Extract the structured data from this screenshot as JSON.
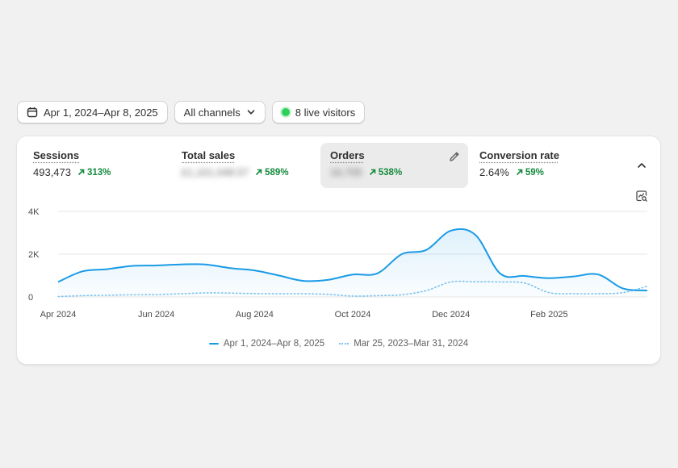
{
  "toolbar": {
    "date_range": "Apr 1, 2024–Apr 8, 2025",
    "channel": "All channels",
    "live_visitors": "8 live visitors"
  },
  "metrics": [
    {
      "label": "Sessions",
      "value": "493,473",
      "change": "313%",
      "blurred": false
    },
    {
      "label": "Total sales",
      "value": "£1,101,048.57",
      "change": "589%",
      "blurred": true
    },
    {
      "label": "Orders",
      "value": "16,705",
      "change": "538%",
      "blurred": true
    },
    {
      "label": "Conversion rate",
      "value": "2.64%",
      "change": "59%",
      "blurred": false
    }
  ],
  "colors": {
    "current": "#1a9be6",
    "previous": "#7fc3ee",
    "positive": "#148a3c",
    "live": "#2fd05a"
  },
  "icons": {
    "date": "calendar-icon",
    "channel": "chevron-down-icon",
    "edit": "pencil-icon",
    "collapse": "chevron-up-icon",
    "zoom": "chart-search-icon"
  },
  "chart_data": {
    "type": "line",
    "x": [
      "Apr 2024",
      "Apr 2024",
      "May 2024",
      "May 2024",
      "Jun 2024",
      "Jun 2024",
      "Jul 2024",
      "Jul 2024",
      "Aug 2024",
      "Aug 2024",
      "Sep 2024",
      "Sep 2024",
      "Oct 2024",
      "Oct 2024",
      "Nov 2024",
      "Nov 2024",
      "Dec 2024",
      "Dec 2024",
      "Jan 2025",
      "Jan 2025",
      "Feb 2025",
      "Feb 2025",
      "Mar 2025",
      "Mar 2025",
      "Apr 2025"
    ],
    "x_ticks": [
      "Apr 2024",
      "Jun 2024",
      "Aug 2024",
      "Oct 2024",
      "Dec 2024",
      "Feb 2025"
    ],
    "y_ticks": [
      "0",
      "2K",
      "4K"
    ],
    "ylim": [
      0,
      4000
    ],
    "grid": true,
    "legend_position": "bottom",
    "series": [
      {
        "name": "Apr 1, 2024–Apr 8, 2025",
        "style": "solid",
        "values": [
          700,
          1200,
          1300,
          1450,
          1470,
          1520,
          1520,
          1350,
          1240,
          1000,
          750,
          800,
          1050,
          1100,
          2000,
          2200,
          3100,
          2900,
          1100,
          980,
          880,
          960,
          1050,
          400,
          300
        ]
      },
      {
        "name": "Mar 25, 2023–Mar 31, 2024",
        "style": "dotted",
        "values": [
          20,
          60,
          80,
          100,
          110,
          150,
          190,
          180,
          160,
          150,
          150,
          120,
          40,
          60,
          100,
          300,
          700,
          710,
          700,
          650,
          200,
          150,
          150,
          200,
          500
        ]
      }
    ]
  }
}
